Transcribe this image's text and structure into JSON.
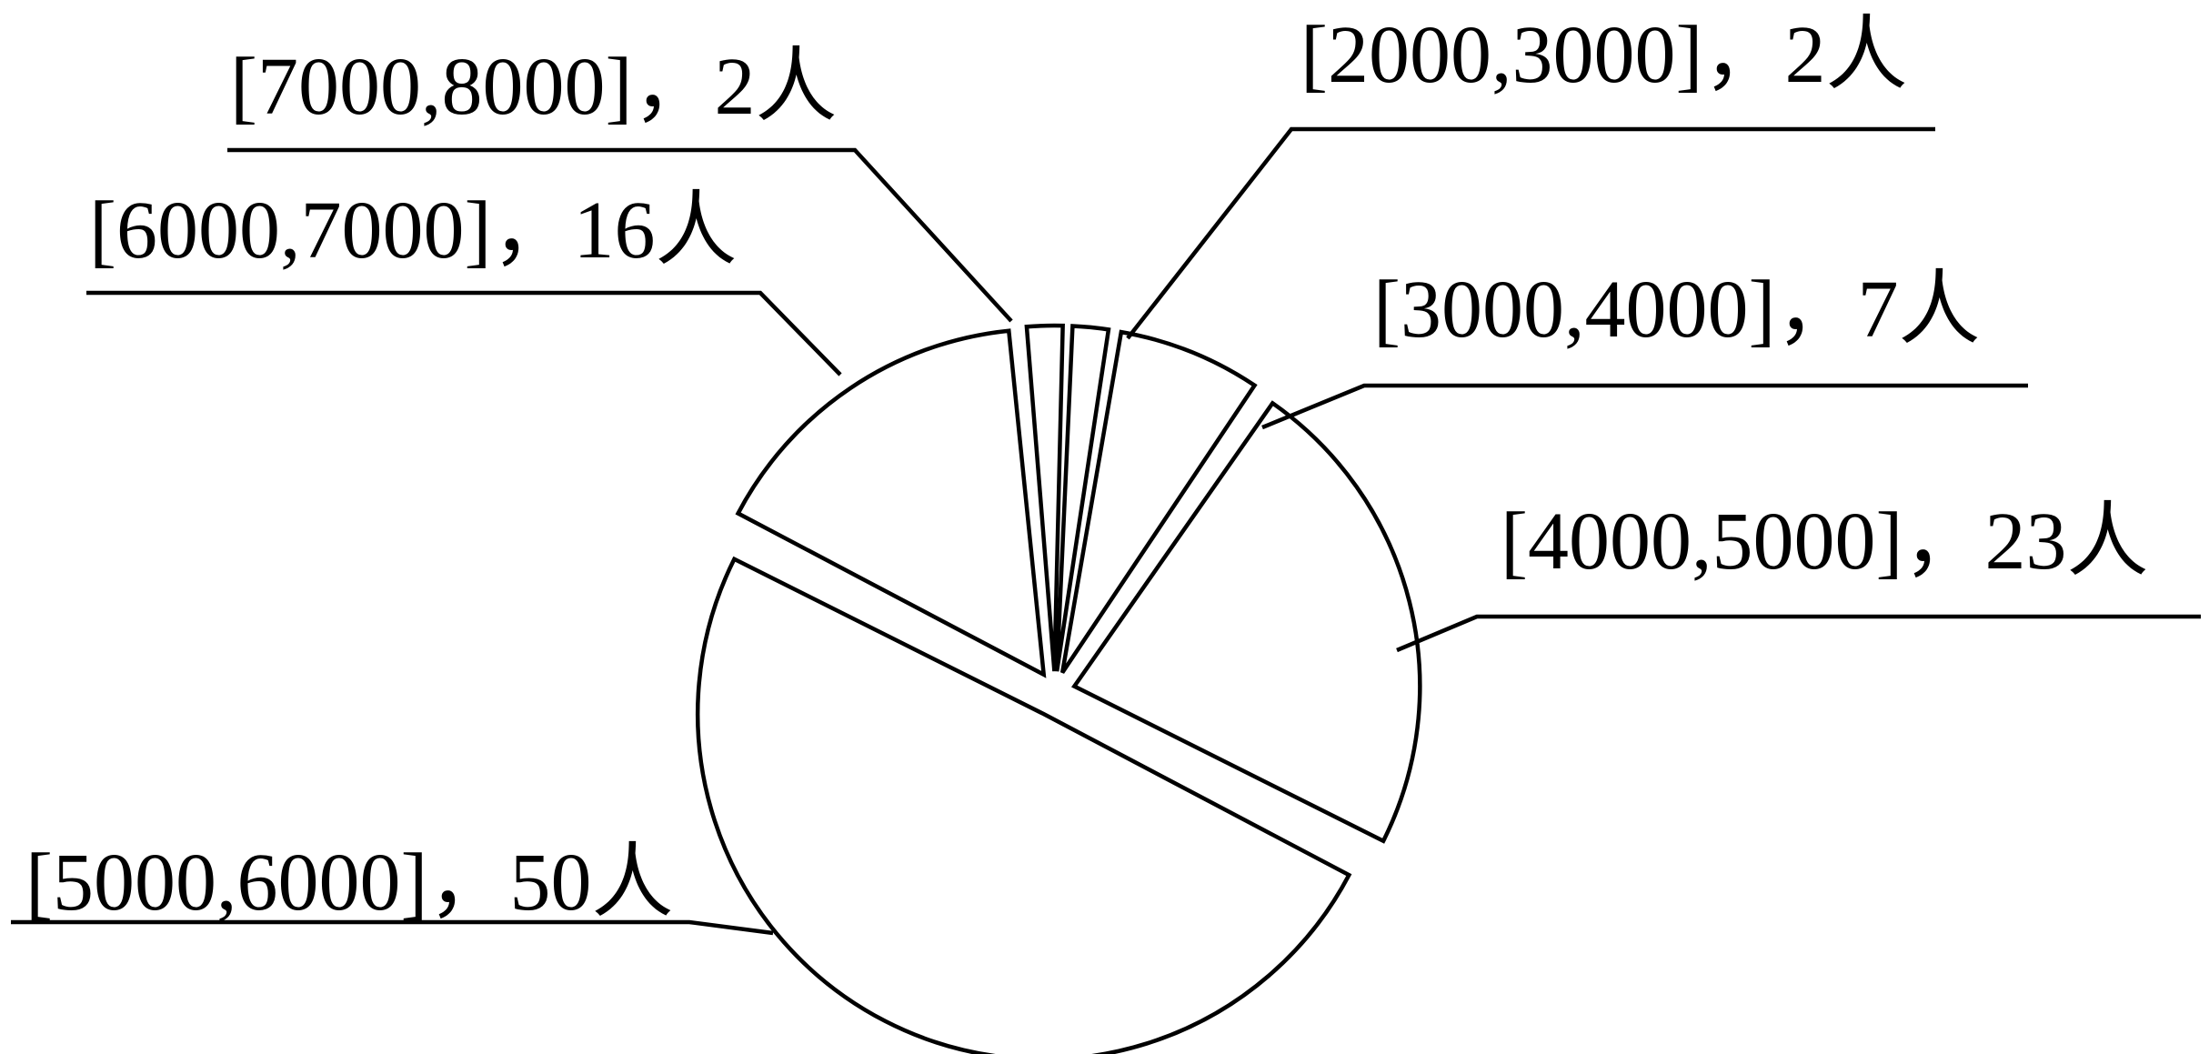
{
  "chart_data": {
    "type": "pie",
    "title": "",
    "slices": [
      {
        "category": "[2000,3000]",
        "value": 2,
        "unit": "人",
        "label": "[2000,3000]，2人"
      },
      {
        "category": "[3000,4000]",
        "value": 7,
        "unit": "人",
        "label": "[3000,4000]，7人"
      },
      {
        "category": "[4000,5000]",
        "value": 23,
        "unit": "人",
        "label": "[4000,5000]，23人"
      },
      {
        "category": "[5000,6000]",
        "value": 50,
        "unit": "人",
        "label": "[5000,6000]，50人"
      },
      {
        "category": "[6000,7000]",
        "value": 16,
        "unit": "人",
        "label": "[6000,7000]，16人"
      },
      {
        "category": "[7000,8000]",
        "value": 2,
        "unit": "人",
        "label": "[7000,8000]，2人"
      }
    ],
    "exploded": true,
    "fill_color": "#ffffff",
    "stroke_color": "#000000",
    "legend": "none"
  }
}
